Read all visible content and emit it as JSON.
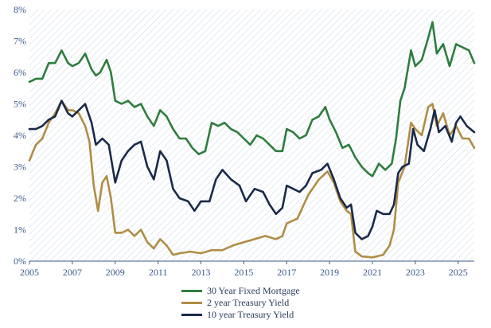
{
  "chart_data": {
    "type": "line",
    "title": "",
    "xlabel": "",
    "ylabel": "",
    "xlim": [
      2005,
      2025.75
    ],
    "ylim": [
      0,
      8
    ],
    "x_ticks": [
      2005,
      2007,
      2009,
      2011,
      2013,
      2015,
      2017,
      2019,
      2021,
      2023,
      2025
    ],
    "x_tick_labels": [
      "2005",
      "2007",
      "2009",
      "2011",
      "2013",
      "2015",
      "2017",
      "2019",
      "2021",
      "2023",
      "2025"
    ],
    "y_ticks": [
      0,
      1,
      2,
      3,
      4,
      5,
      6,
      7,
      8
    ],
    "y_tick_labels": [
      "0%",
      "1%",
      "2%",
      "3%",
      "4%",
      "5%",
      "6%",
      "7%",
      "8%"
    ],
    "grid": false,
    "legend_position": "bottom",
    "colors": {
      "mortgage": "#2e7d3e",
      "two_year": "#b08d45",
      "ten_year": "#1b2a4a",
      "axis": "#3b5a8a",
      "hatch": "#c9d7e8"
    },
    "series": [
      {
        "name": "30 Year Fixed Mortgage",
        "key": "mortgage",
        "x": [
          2005,
          2005.3,
          2005.6,
          2005.9,
          2006.2,
          2006.5,
          2006.8,
          2007.0,
          2007.3,
          2007.6,
          2007.9,
          2008.1,
          2008.3,
          2008.6,
          2008.8,
          2009.0,
          2009.3,
          2009.6,
          2009.9,
          2010.2,
          2010.5,
          2010.8,
          2011.1,
          2011.4,
          2011.7,
          2012.0,
          2012.3,
          2012.6,
          2012.9,
          2013.2,
          2013.5,
          2013.8,
          2014.1,
          2014.4,
          2014.7,
          2015.0,
          2015.3,
          2015.6,
          2015.9,
          2016.2,
          2016.5,
          2016.8,
          2017.0,
          2017.3,
          2017.6,
          2017.9,
          2018.2,
          2018.5,
          2018.8,
          2019.0,
          2019.3,
          2019.6,
          2019.9,
          2020.2,
          2020.5,
          2020.8,
          2021.0,
          2021.3,
          2021.6,
          2021.9,
          2022.1,
          2022.3,
          2022.5,
          2022.8,
          2023.0,
          2023.3,
          2023.6,
          2023.8,
          2024.0,
          2024.3,
          2024.6,
          2024.9,
          2025.2,
          2025.5,
          2025.75
        ],
        "values": [
          5.7,
          5.8,
          5.8,
          6.3,
          6.3,
          6.7,
          6.3,
          6.2,
          6.3,
          6.6,
          6.1,
          5.9,
          6.0,
          6.4,
          6.0,
          5.1,
          5.0,
          5.1,
          4.9,
          5.0,
          4.6,
          4.3,
          4.8,
          4.6,
          4.2,
          3.9,
          3.9,
          3.6,
          3.4,
          3.5,
          4.4,
          4.3,
          4.4,
          4.2,
          4.1,
          3.9,
          3.7,
          4.0,
          3.9,
          3.7,
          3.5,
          3.5,
          4.2,
          4.1,
          3.9,
          4.0,
          4.5,
          4.6,
          4.9,
          4.5,
          4.1,
          3.6,
          3.7,
          3.3,
          3.0,
          2.8,
          2.7,
          3.1,
          2.9,
          3.1,
          3.9,
          5.1,
          5.5,
          6.7,
          6.2,
          6.4,
          7.1,
          7.6,
          6.6,
          6.9,
          6.2,
          6.9,
          6.8,
          6.7,
          6.3
        ]
      },
      {
        "name": "2 year Treasury Yield",
        "key": "two_year",
        "x": [
          2005,
          2005.3,
          2005.6,
          2005.9,
          2006.2,
          2006.5,
          2006.8,
          2007.0,
          2007.3,
          2007.6,
          2007.8,
          2007.9,
          2008.0,
          2008.2,
          2008.4,
          2008.6,
          2008.8,
          2009.0,
          2009.3,
          2009.6,
          2009.9,
          2010.2,
          2010.5,
          2010.8,
          2011.1,
          2011.4,
          2011.7,
          2012.0,
          2012.5,
          2013.0,
          2013.5,
          2014.0,
          2014.5,
          2015.0,
          2015.5,
          2016.0,
          2016.5,
          2016.8,
          2017.0,
          2017.5,
          2018.0,
          2018.5,
          2018.9,
          2019.2,
          2019.5,
          2019.8,
          2020.0,
          2020.2,
          2020.5,
          2021.0,
          2021.5,
          2021.8,
          2022.0,
          2022.2,
          2022.5,
          2022.8,
          2023.0,
          2023.3,
          2023.6,
          2023.8,
          2024.0,
          2024.3,
          2024.6,
          2024.9,
          2025.2,
          2025.5,
          2025.75
        ],
        "values": [
          3.2,
          3.7,
          3.9,
          4.4,
          4.7,
          5.1,
          4.8,
          4.8,
          4.7,
          4.3,
          3.8,
          3.1,
          2.4,
          1.6,
          2.5,
          2.7,
          2.0,
          0.9,
          0.9,
          1.0,
          0.8,
          1.0,
          0.6,
          0.4,
          0.7,
          0.5,
          0.2,
          0.25,
          0.3,
          0.25,
          0.35,
          0.35,
          0.5,
          0.6,
          0.7,
          0.8,
          0.7,
          0.8,
          1.2,
          1.35,
          2.1,
          2.6,
          2.85,
          2.5,
          1.9,
          1.6,
          1.5,
          0.3,
          0.15,
          0.12,
          0.2,
          0.5,
          1.0,
          2.5,
          3.0,
          4.4,
          4.2,
          4.0,
          4.9,
          5.0,
          4.3,
          4.7,
          4.0,
          4.3,
          3.9,
          3.9,
          3.6
        ]
      },
      {
        "name": "10 year Treasury Yield",
        "key": "ten_year",
        "x": [
          2005,
          2005.3,
          2005.6,
          2005.9,
          2006.2,
          2006.5,
          2006.8,
          2007.0,
          2007.3,
          2007.6,
          2007.9,
          2008.1,
          2008.4,
          2008.7,
          2009.0,
          2009.3,
          2009.6,
          2009.9,
          2010.2,
          2010.5,
          2010.8,
          2011.1,
          2011.4,
          2011.7,
          2012.0,
          2012.4,
          2012.7,
          2013.0,
          2013.4,
          2013.7,
          2014.0,
          2014.4,
          2014.8,
          2015.1,
          2015.5,
          2015.9,
          2016.2,
          2016.5,
          2016.8,
          2017.0,
          2017.3,
          2017.6,
          2017.9,
          2018.2,
          2018.6,
          2018.9,
          2019.2,
          2019.5,
          2019.8,
          2020.0,
          2020.2,
          2020.5,
          2020.8,
          2021.0,
          2021.2,
          2021.5,
          2021.8,
          2022.0,
          2022.2,
          2022.4,
          2022.7,
          2022.9,
          2023.1,
          2023.4,
          2023.7,
          2023.9,
          2024.1,
          2024.4,
          2024.7,
          2024.9,
          2025.1,
          2025.4,
          2025.75
        ],
        "values": [
          4.2,
          4.2,
          4.3,
          4.5,
          4.6,
          5.1,
          4.7,
          4.6,
          4.8,
          5.0,
          4.4,
          3.7,
          3.9,
          3.7,
          2.5,
          3.2,
          3.5,
          3.7,
          3.8,
          3.0,
          2.6,
          3.5,
          3.2,
          2.3,
          2.0,
          1.9,
          1.6,
          1.9,
          1.9,
          2.6,
          2.9,
          2.6,
          2.4,
          1.9,
          2.3,
          2.2,
          1.8,
          1.5,
          1.7,
          2.4,
          2.3,
          2.2,
          2.4,
          2.8,
          2.9,
          3.1,
          2.6,
          2.0,
          1.7,
          1.8,
          0.9,
          0.7,
          0.8,
          1.1,
          1.6,
          1.5,
          1.5,
          1.8,
          2.8,
          3.0,
          3.1,
          4.2,
          3.7,
          3.5,
          4.2,
          4.8,
          4.1,
          4.3,
          3.8,
          4.4,
          4.6,
          4.3,
          4.1
        ]
      }
    ]
  }
}
